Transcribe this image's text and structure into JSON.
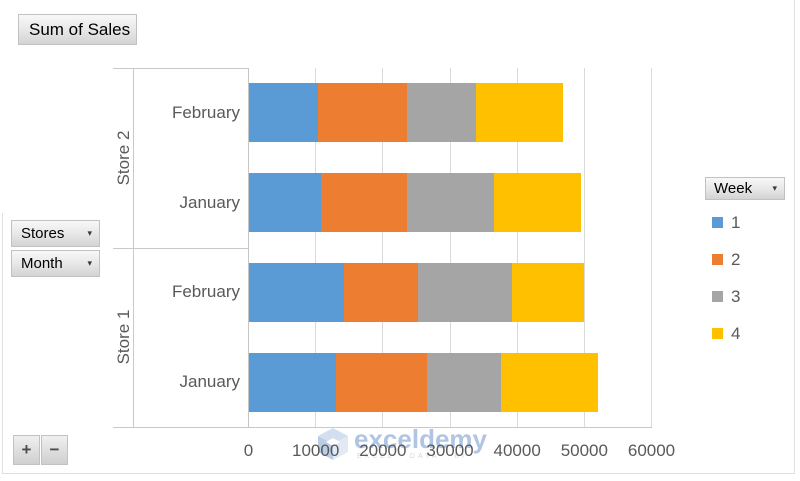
{
  "value_field_button": {
    "label": "Sum of Sales"
  },
  "axis_field_buttons": [
    {
      "label": "Stores"
    },
    {
      "label": "Month"
    }
  ],
  "legend_field_button": {
    "label": "Week"
  },
  "expand_collapse": {
    "expand": "+",
    "collapse": "−"
  },
  "watermark": {
    "brand": "exceldemy",
    "tagline": "EXCEL · DATA · BI"
  },
  "chart_data": {
    "type": "bar",
    "orientation": "horizontal",
    "stacked": true,
    "title": "",
    "xlabel": "",
    "ylabel": "",
    "x_axis": {
      "min": 0,
      "max": 60000,
      "tick_labels": [
        "0",
        "10000",
        "20000",
        "30000",
        "40000",
        "50000",
        "60000"
      ],
      "gridlines": true
    },
    "categories": [
      {
        "store": "Store 2",
        "month": "February"
      },
      {
        "store": "Store 2",
        "month": "January"
      },
      {
        "store": "Store 1",
        "month": "February"
      },
      {
        "store": "Store 1",
        "month": "January"
      }
    ],
    "series": [
      {
        "name": "1",
        "color": "#5B9BD5",
        "values": [
          10200,
          10700,
          14200,
          13000
        ]
      },
      {
        "name": "2",
        "color": "#ED7D31",
        "values": [
          13300,
          12800,
          11000,
          13500
        ]
      },
      {
        "name": "3",
        "color": "#A5A5A5",
        "values": [
          10300,
          13000,
          14000,
          11000
        ]
      },
      {
        "name": "4",
        "color": "#FFC000",
        "values": [
          12900,
          13000,
          10700,
          14400
        ]
      }
    ],
    "legend": {
      "title": "Week",
      "entries": [
        "1",
        "2",
        "3",
        "4"
      ],
      "position": "right"
    },
    "axis_text_color": "#595959"
  }
}
